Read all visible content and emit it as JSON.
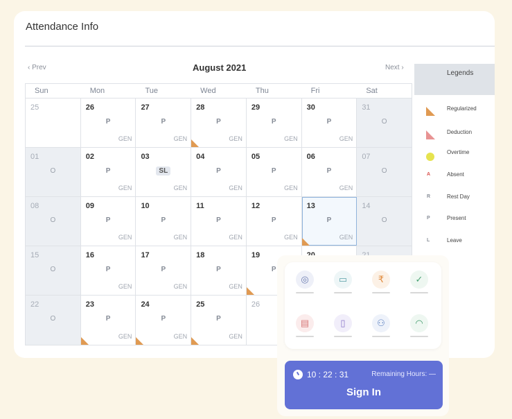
{
  "header": {
    "title": "Attendance Info"
  },
  "calendar": {
    "prev_label": "Prev",
    "next_label": "Next",
    "month": "August 2021",
    "weekdays": [
      "Sun",
      "Mon",
      "Tue",
      "Wed",
      "Thu",
      "Fri",
      "Sat"
    ],
    "weeks": [
      [
        {
          "day": "25",
          "muted": true,
          "status": "",
          "shift": ""
        },
        {
          "day": "26",
          "status": "P",
          "shift": "GEN"
        },
        {
          "day": "27",
          "status": "P",
          "shift": "GEN"
        },
        {
          "day": "28",
          "status": "P",
          "shift": "GEN",
          "flag": "regularized"
        },
        {
          "day": "29",
          "status": "P",
          "shift": "GEN"
        },
        {
          "day": "30",
          "status": "P",
          "shift": "GEN"
        },
        {
          "day": "31",
          "weekend": true,
          "status": "O",
          "shift": ""
        }
      ],
      [
        {
          "day": "01",
          "weekend": true,
          "status": "O",
          "shift": ""
        },
        {
          "day": "02",
          "status": "P",
          "shift": "GEN"
        },
        {
          "day": "03",
          "status": "SL",
          "shift": "GEN",
          "pill": true
        },
        {
          "day": "04",
          "status": "P",
          "shift": "GEN"
        },
        {
          "day": "05",
          "status": "P",
          "shift": "GEN"
        },
        {
          "day": "06",
          "status": "P",
          "shift": "GEN"
        },
        {
          "day": "07",
          "weekend": true,
          "status": "O",
          "shift": ""
        }
      ],
      [
        {
          "day": "08",
          "weekend": true,
          "status": "O",
          "shift": ""
        },
        {
          "day": "09",
          "status": "P",
          "shift": "GEN"
        },
        {
          "day": "10",
          "status": "P",
          "shift": "GEN"
        },
        {
          "day": "11",
          "status": "P",
          "shift": "GEN"
        },
        {
          "day": "12",
          "status": "P",
          "shift": "GEN"
        },
        {
          "day": "13",
          "status": "P",
          "shift": "GEN",
          "flag": "regularized",
          "selected": true
        },
        {
          "day": "14",
          "weekend": true,
          "status": "O",
          "shift": ""
        }
      ],
      [
        {
          "day": "15",
          "weekend": true,
          "status": "O",
          "shift": ""
        },
        {
          "day": "16",
          "status": "P",
          "shift": "GEN"
        },
        {
          "day": "17",
          "status": "P",
          "shift": "GEN"
        },
        {
          "day": "18",
          "status": "P",
          "shift": "GEN"
        },
        {
          "day": "19",
          "status": "P",
          "shift": "",
          "flag": "regularized"
        },
        {
          "day": "20",
          "status": "",
          "shift": ""
        },
        {
          "day": "21",
          "weekend": true,
          "status": "",
          "shift": ""
        }
      ],
      [
        {
          "day": "22",
          "weekend": true,
          "status": "O",
          "shift": ""
        },
        {
          "day": "23",
          "status": "P",
          "shift": "GEN",
          "flag": "regularized"
        },
        {
          "day": "24",
          "status": "P",
          "shift": "GEN",
          "flag": "regularized"
        },
        {
          "day": "25",
          "status": "P",
          "shift": "GEN",
          "flag": "regularized"
        },
        {
          "day": "26",
          "muted": true,
          "status": "",
          "shift": ""
        },
        {
          "day": "",
          "status": "",
          "shift": ""
        },
        {
          "day": "",
          "status": "",
          "shift": ""
        }
      ]
    ]
  },
  "legend": {
    "title": "Legends",
    "items": [
      {
        "label": "Regularized",
        "icon": "triangle",
        "color": "#e09a52"
      },
      {
        "label": "Deduction",
        "icon": "triangle",
        "color": "#e89393"
      },
      {
        "label": "Overtime",
        "icon": "circle",
        "color": "#e6e34f"
      },
      {
        "label": "Absent",
        "icon": "A",
        "color": "#d9534f"
      },
      {
        "label": "Rest Day",
        "icon": "R",
        "color": "#8a8f99"
      },
      {
        "label": "Present",
        "icon": "P",
        "color": "#8a8f99"
      },
      {
        "label": "Leave",
        "icon": "L",
        "color": "#8a8f99"
      }
    ]
  },
  "quick_actions": [
    {
      "icon": "fingerprint-icon",
      "color": "#6a7bb0",
      "bg": "#eef0f8"
    },
    {
      "icon": "briefcase-icon",
      "color": "#5aa0a8",
      "bg": "#eef6f7"
    },
    {
      "icon": "rupee-hand-icon",
      "color": "#e08a3c",
      "bg": "#fcf1e6"
    },
    {
      "icon": "clipboard-check-icon",
      "color": "#4aa374",
      "bg": "#eef7f1"
    },
    {
      "icon": "form-icon",
      "color": "#d87a7a",
      "bg": "#fbecec"
    },
    {
      "icon": "document-icon",
      "color": "#8a77c9",
      "bg": "#f1eefa"
    },
    {
      "icon": "users-icon",
      "color": "#5a7fc0",
      "bg": "#eef2fa"
    },
    {
      "icon": "headset-icon",
      "color": "#3f9a6a",
      "bg": "#eef7f1"
    }
  ],
  "signin": {
    "time": "10 : 22 : 31",
    "remaining": "Remaining Hours: —",
    "button": "Sign In",
    "color": "#6271d6"
  }
}
